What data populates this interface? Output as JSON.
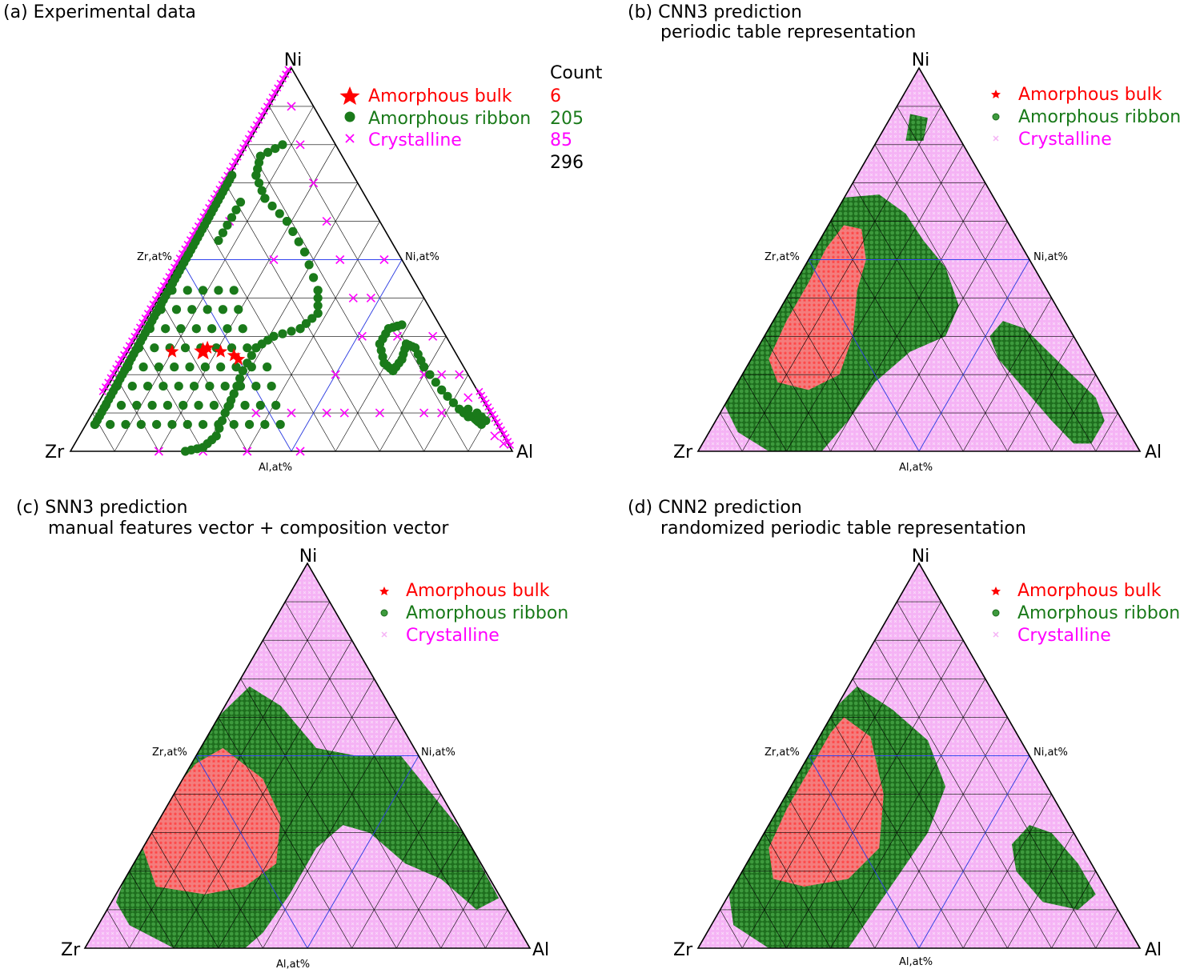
{
  "colors": {
    "bulk": "#ff0000",
    "ribbon": "#1a7a1a",
    "crystalline": "#ff00ff",
    "crystalline_fill": "#f5b3f5",
    "bulk_fill": "#f47d7d",
    "ribbon_fill": "#2f8a2f",
    "grid": "#000000",
    "guide": "#3344ee"
  },
  "chart_data": [
    {
      "type": "scatter",
      "panel": "a",
      "title": "(a)  Experimental data",
      "subtitle": "",
      "vertices": {
        "top": "Ni",
        "left": "Zr",
        "right": "Al"
      },
      "axis_labels": {
        "left": "Zr,at%",
        "right": "Ni,at%",
        "bottom": "Al,at%"
      },
      "count_header": "Count",
      "legend": [
        {
          "label": "Amorphous bulk",
          "count": "6",
          "class": "bulk"
        },
        {
          "label": "Amorphous ribbon",
          "count": "205",
          "class": "ribbon"
        },
        {
          "label": "Crystalline",
          "count": "85",
          "class": "crystalline"
        }
      ],
      "total": "296",
      "bulk_points": [
        [
          0.23,
          0.26
        ],
        [
          0.3,
          0.26
        ],
        [
          0.31,
          0.27
        ],
        [
          0.34,
          0.26
        ],
        [
          0.37,
          0.25
        ],
        [
          0.38,
          0.24
        ]
      ],
      "ribbon_paths": [
        [
          [
            0.48,
            0.8
          ],
          [
            0.43,
            0.77
          ],
          [
            0.42,
            0.72
          ],
          [
            0.44,
            0.66
          ],
          [
            0.49,
            0.6
          ],
          [
            0.53,
            0.52
          ],
          [
            0.56,
            0.42
          ],
          [
            0.56,
            0.36
          ],
          [
            0.52,
            0.32
          ],
          [
            0.46,
            0.3
          ],
          [
            0.42,
            0.27
          ],
          [
            0.39,
            0.21
          ],
          [
            0.37,
            0.15
          ],
          [
            0.35,
            0.1
          ],
          [
            0.33,
            0.04
          ],
          [
            0.3,
            0.01
          ],
          [
            0.26,
            0.0
          ]
        ],
        [
          [
            0.75,
            0.33
          ],
          [
            0.72,
            0.32
          ],
          [
            0.7,
            0.28
          ],
          [
            0.71,
            0.23
          ],
          [
            0.73,
            0.21
          ],
          [
            0.75,
            0.24
          ],
          [
            0.76,
            0.28
          ],
          [
            0.78,
            0.27
          ],
          [
            0.8,
            0.22
          ],
          [
            0.84,
            0.16
          ],
          [
            0.88,
            0.11
          ],
          [
            0.91,
            0.09
          ],
          [
            0.93,
            0.07
          ]
        ]
      ],
      "ribbon_edge": [
        [
          0.05,
          0.07
        ],
        [
          0.36,
          0.72
        ]
      ],
      "ribbon_cluster": [
        [
          0.89,
          0.1
        ],
        [
          0.9,
          0.11
        ],
        [
          0.91,
          0.09
        ],
        [
          0.92,
          0.1
        ],
        [
          0.93,
          0.09
        ],
        [
          0.94,
          0.08
        ],
        [
          0.92,
          0.08
        ],
        [
          0.9,
          0.09
        ]
      ],
      "crystalline_edge_left": [
        [
          0.08,
          0.16
        ],
        [
          0.5,
          1.0
        ]
      ],
      "crystalline_edge_right": [
        [
          0.92,
          0.16
        ],
        [
          0.99,
          0.02
        ]
      ],
      "crystalline_points": [
        [
          0.5,
          0.9
        ],
        [
          0.52,
          0.8
        ],
        [
          0.55,
          0.7
        ],
        [
          0.58,
          0.6
        ],
        [
          0.61,
          0.5
        ],
        [
          0.64,
          0.4
        ],
        [
          0.66,
          0.3
        ],
        [
          0.6,
          0.2
        ],
        [
          0.5,
          0.1
        ],
        [
          0.4,
          0.0
        ],
        [
          0.3,
          0.0
        ],
        [
          0.2,
          0.0
        ],
        [
          0.52,
          0.0
        ],
        [
          0.58,
          0.1
        ],
        [
          0.7,
          0.1
        ],
        [
          0.8,
          0.1
        ],
        [
          0.74,
          0.3
        ],
        [
          0.8,
          0.2
        ],
        [
          0.82,
          0.3
        ],
        [
          0.84,
          0.2
        ],
        [
          0.88,
          0.2
        ],
        [
          0.9,
          0.14
        ],
        [
          0.96,
          0.04
        ],
        [
          0.98,
          0.02
        ],
        [
          0.84,
          0.1
        ],
        [
          0.62,
          0.1
        ],
        [
          0.36,
          0.6
        ],
        [
          0.46,
          0.5
        ],
        [
          0.42,
          0.1
        ],
        [
          0.68,
          0.4
        ],
        [
          0.71,
          0.5
        ]
      ],
      "ribbon_grid": true
    },
    {
      "type": "heatmap",
      "panel": "b",
      "title": "(b) CNN3 prediction",
      "subtitle": "periodic table representation",
      "vertices": {
        "top": "Ni",
        "left": "Zr",
        "right": "Al"
      },
      "axis_labels": {
        "left": "Zr,at%",
        "right": "Ni,at%",
        "bottom": "Al,at%"
      },
      "legend": [
        {
          "label": "Amorphous bulk",
          "class": "bulk"
        },
        {
          "label": "Amorphous ribbon",
          "class": "ribbon"
        },
        {
          "label": "Crystalline",
          "class": "crystalline"
        }
      ],
      "regions": {
        "ribbon": [
          [
            [
              0.31,
              0.66
            ],
            [
              0.41,
              0.67
            ],
            [
              0.47,
              0.62
            ],
            [
              0.51,
              0.55
            ],
            [
              0.56,
              0.48
            ],
            [
              0.59,
              0.38
            ],
            [
              0.56,
              0.3
            ],
            [
              0.48,
              0.26
            ],
            [
              0.4,
              0.18
            ],
            [
              0.34,
              0.08
            ],
            [
              0.28,
              0.0
            ],
            [
              0.16,
              0.0
            ],
            [
              0.09,
              0.05
            ],
            [
              0.06,
              0.12
            ],
            [
              0.08,
              0.2
            ],
            [
              0.14,
              0.3
            ],
            [
              0.2,
              0.44
            ],
            [
              0.25,
              0.58
            ]
          ],
          [
            [
              0.48,
              0.88
            ],
            [
              0.52,
              0.87
            ],
            [
              0.51,
              0.81
            ],
            [
              0.47,
              0.81
            ]
          ],
          [
            [
              0.69,
              0.34
            ],
            [
              0.74,
              0.32
            ],
            [
              0.81,
              0.24
            ],
            [
              0.9,
              0.14
            ],
            [
              0.92,
              0.08
            ],
            [
              0.89,
              0.02
            ],
            [
              0.85,
              0.02
            ],
            [
              0.8,
              0.08
            ],
            [
              0.74,
              0.16
            ],
            [
              0.68,
              0.24
            ],
            [
              0.66,
              0.3
            ]
          ]
        ],
        "bulk": [
          [
            [
              0.33,
              0.59
            ],
            [
              0.37,
              0.58
            ],
            [
              0.38,
              0.5
            ],
            [
              0.36,
              0.42
            ],
            [
              0.35,
              0.3
            ],
            [
              0.32,
              0.2
            ],
            [
              0.25,
              0.16
            ],
            [
              0.18,
              0.18
            ],
            [
              0.16,
              0.24
            ],
            [
              0.2,
              0.34
            ],
            [
              0.25,
              0.44
            ],
            [
              0.29,
              0.53
            ]
          ]
        ]
      }
    },
    {
      "type": "heatmap",
      "panel": "c",
      "title": "(c) SNN3 prediction",
      "subtitle": "manual features vector + composition vector",
      "vertices": {
        "top": "Ni",
        "left": "Zr",
        "right": "Al"
      },
      "axis_labels": {
        "left": "Zr,at%",
        "right": "Ni,at%",
        "bottom": "Al,at%"
      },
      "legend": [
        {
          "label": "Amorphous bulk",
          "class": "bulk"
        },
        {
          "label": "Amorphous ribbon",
          "class": "ribbon"
        },
        {
          "label": "Crystalline",
          "class": "crystalline"
        }
      ],
      "regions": {
        "ribbon": [
          [
            [
              0.37,
              0.68
            ],
            [
              0.44,
              0.63
            ],
            [
              0.52,
              0.52
            ],
            [
              0.61,
              0.5
            ],
            [
              0.71,
              0.5
            ],
            [
              0.85,
              0.3
            ],
            [
              0.93,
              0.13
            ],
            [
              0.88,
              0.1
            ],
            [
              0.8,
              0.18
            ],
            [
              0.72,
              0.22
            ],
            [
              0.64,
              0.3
            ],
            [
              0.58,
              0.32
            ],
            [
              0.52,
              0.26
            ],
            [
              0.46,
              0.14
            ],
            [
              0.4,
              0.04
            ],
            [
              0.36,
              0.0
            ],
            [
              0.2,
              0.0
            ],
            [
              0.1,
              0.06
            ],
            [
              0.07,
              0.12
            ],
            [
              0.12,
              0.28
            ],
            [
              0.2,
              0.44
            ],
            [
              0.28,
              0.58
            ]
          ]
        ],
        "bulk": [
          [
            [
              0.31,
              0.52
            ],
            [
              0.4,
              0.44
            ],
            [
              0.44,
              0.34
            ],
            [
              0.43,
              0.22
            ],
            [
              0.36,
              0.16
            ],
            [
              0.27,
              0.14
            ],
            [
              0.16,
              0.16
            ],
            [
              0.13,
              0.26
            ],
            [
              0.19,
              0.4
            ],
            [
              0.25,
              0.48
            ]
          ]
        ]
      }
    },
    {
      "type": "heatmap",
      "panel": "d",
      "title": "(d) CNN2 prediction",
      "subtitle": "randomized periodic table representation",
      "vertices": {
        "top": "Ni",
        "left": "Zr",
        "right": "Al"
      },
      "axis_labels": {
        "left": "Zr,at%",
        "right": "Ni,at%",
        "bottom": "Al,at%"
      },
      "legend": [
        {
          "label": "Amorphous bulk",
          "class": "bulk"
        },
        {
          "label": "Amorphous ribbon",
          "class": "ribbon"
        },
        {
          "label": "Crystalline",
          "class": "crystalline"
        }
      ],
      "regions": {
        "ribbon": [
          [
            [
              0.36,
              0.68
            ],
            [
              0.44,
              0.62
            ],
            [
              0.52,
              0.54
            ],
            [
              0.56,
              0.42
            ],
            [
              0.52,
              0.3
            ],
            [
              0.46,
              0.2
            ],
            [
              0.4,
              0.1
            ],
            [
              0.34,
              0.0
            ],
            [
              0.16,
              0.0
            ],
            [
              0.08,
              0.06
            ],
            [
              0.07,
              0.14
            ],
            [
              0.12,
              0.3
            ],
            [
              0.19,
              0.44
            ],
            [
              0.27,
              0.58
            ]
          ],
          [
            [
              0.75,
              0.32
            ],
            [
              0.8,
              0.3
            ],
            [
              0.86,
              0.22
            ],
            [
              0.9,
              0.14
            ],
            [
              0.86,
              0.1
            ],
            [
              0.78,
              0.12
            ],
            [
              0.72,
              0.2
            ],
            [
              0.71,
              0.27
            ]
          ]
        ],
        "bulk": [
          [
            [
              0.33,
              0.6
            ],
            [
              0.39,
              0.55
            ],
            [
              0.42,
              0.4
            ],
            [
              0.41,
              0.26
            ],
            [
              0.34,
              0.18
            ],
            [
              0.24,
              0.16
            ],
            [
              0.17,
              0.18
            ],
            [
              0.16,
              0.26
            ],
            [
              0.2,
              0.36
            ],
            [
              0.26,
              0.48
            ],
            [
              0.3,
              0.56
            ]
          ]
        ]
      }
    }
  ]
}
